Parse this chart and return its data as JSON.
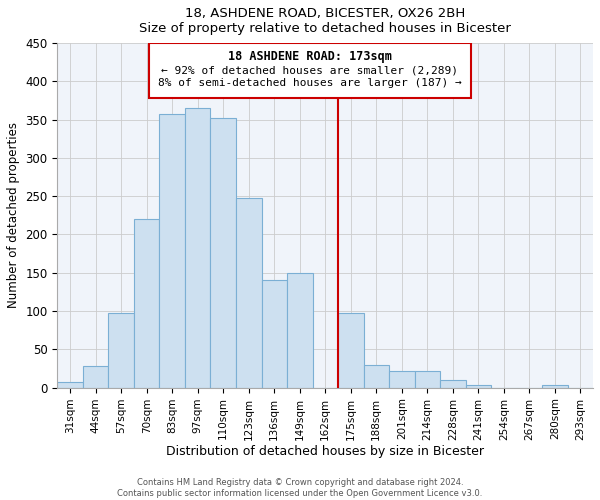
{
  "title": "18, ASHDENE ROAD, BICESTER, OX26 2BH",
  "subtitle": "Size of property relative to detached houses in Bicester",
  "xlabel": "Distribution of detached houses by size in Bicester",
  "ylabel": "Number of detached properties",
  "bar_labels": [
    "31sqm",
    "44sqm",
    "57sqm",
    "70sqm",
    "83sqm",
    "97sqm",
    "110sqm",
    "123sqm",
    "136sqm",
    "149sqm",
    "162sqm",
    "175sqm",
    "188sqm",
    "201sqm",
    "214sqm",
    "228sqm",
    "241sqm",
    "254sqm",
    "267sqm",
    "280sqm",
    "293sqm"
  ],
  "bar_heights": [
    8,
    28,
    98,
    220,
    358,
    365,
    352,
    248,
    140,
    150,
    0,
    97,
    30,
    22,
    22,
    10,
    4,
    0,
    0,
    3
  ],
  "bar_color": "#cde0f0",
  "bar_edge_color": "#7bafd4",
  "vline_color": "#cc0000",
  "vline_bar_index": 11,
  "annotation_title": "18 ASHDENE ROAD: 173sqm",
  "annotation_line1": "← 92% of detached houses are smaller (2,289)",
  "annotation_line2": "8% of semi-detached houses are larger (187) →",
  "annotation_box_color": "#ffffff",
  "annotation_box_edge": "#cc0000",
  "ylim": [
    0,
    450
  ],
  "yticks": [
    0,
    50,
    100,
    150,
    200,
    250,
    300,
    350,
    400,
    450
  ],
  "footer1": "Contains HM Land Registry data © Crown copyright and database right 2024.",
  "footer2": "Contains public sector information licensed under the Open Government Licence v3.0.",
  "bg_color": "#f0f4fa"
}
